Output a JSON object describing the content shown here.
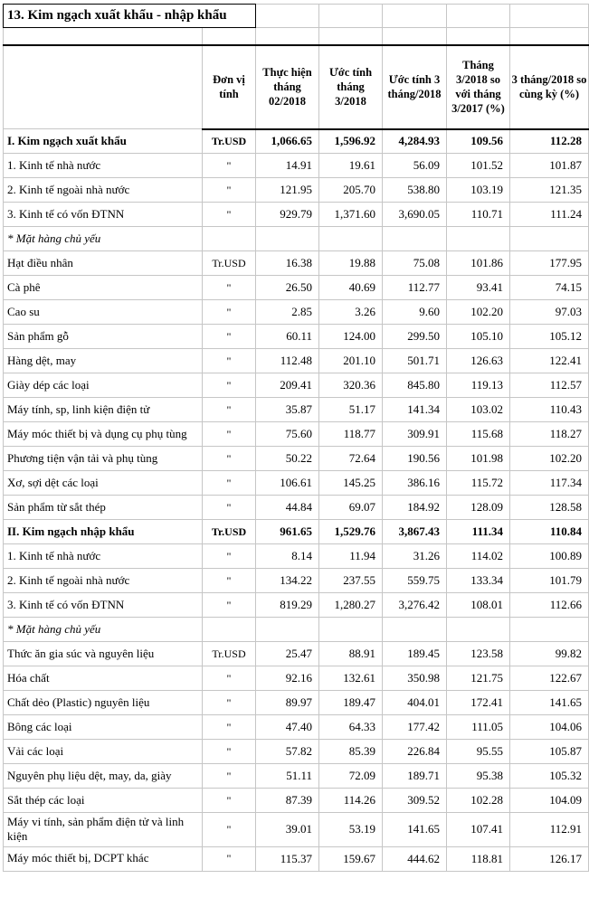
{
  "title": "13. Kim ngạch xuất khẩu - nhập khẩu",
  "colors": {
    "background": "#ffffff",
    "grid_line": "#c6c6c6",
    "accent_border": "#000000",
    "text": "#000000"
  },
  "table": {
    "columns": [
      "",
      "Đơn vị tính",
      "Thực hiện tháng 02/2018",
      "Ước tính tháng 3/2018",
      "Ước tính 3 tháng/2018",
      "Tháng 3/2018 so với tháng 3/2017 (%)",
      "3 tháng/2018 so cùng kỳ (%)"
    ],
    "rows": [
      {
        "label": "I. Kim ngạch xuất khẩu",
        "unit": "Tr.USD",
        "values": [
          "1,066.65",
          "1,596.92",
          "4,284.93",
          "109.56",
          "112.28"
        ],
        "style": "bold"
      },
      {
        "label": "1. Kinh tế nhà nước",
        "unit": "\"",
        "values": [
          "14.91",
          "19.61",
          "56.09",
          "101.52",
          "101.87"
        ],
        "style": "normal"
      },
      {
        "label": "2. Kinh tế ngoài nhà nước",
        "unit": "\"",
        "values": [
          "121.95",
          "205.70",
          "538.80",
          "103.19",
          "121.35"
        ],
        "style": "normal"
      },
      {
        "label": "3. Kinh tế có vốn ĐTNN",
        "unit": "\"",
        "values": [
          "929.79",
          "1,371.60",
          "3,690.05",
          "110.71",
          "111.24"
        ],
        "style": "normal"
      },
      {
        "label": "* Mặt hàng chủ yếu",
        "unit": "",
        "values": [
          "",
          "",
          "",
          "",
          ""
        ],
        "style": "italic"
      },
      {
        "label": "Hạt điều nhân",
        "unit": "Tr.USD",
        "values": [
          "16.38",
          "19.88",
          "75.08",
          "101.86",
          "177.95"
        ],
        "style": "normal"
      },
      {
        "label": "Cà phê",
        "unit": "\"",
        "values": [
          "26.50",
          "40.69",
          "112.77",
          "93.41",
          "74.15"
        ],
        "style": "normal"
      },
      {
        "label": "Cao su",
        "unit": "\"",
        "values": [
          "2.85",
          "3.26",
          "9.60",
          "102.20",
          "97.03"
        ],
        "style": "normal"
      },
      {
        "label": "Sản phẩm gỗ",
        "unit": "\"",
        "values": [
          "60.11",
          "124.00",
          "299.50",
          "105.10",
          "105.12"
        ],
        "style": "normal"
      },
      {
        "label": "Hàng dệt, may",
        "unit": "\"",
        "values": [
          "112.48",
          "201.10",
          "501.71",
          "126.63",
          "122.41"
        ],
        "style": "normal"
      },
      {
        "label": "Giày dép các loại",
        "unit": "\"",
        "values": [
          "209.41",
          "320.36",
          "845.80",
          "119.13",
          "112.57"
        ],
        "style": "normal"
      },
      {
        "label": "Máy tính, sp, linh kiện điện tử",
        "unit": "\"",
        "values": [
          "35.87",
          "51.17",
          "141.34",
          "103.02",
          "110.43"
        ],
        "style": "normal"
      },
      {
        "label": "Máy móc thiết bị và dụng cụ phụ tùng",
        "unit": "\"",
        "values": [
          "75.60",
          "118.77",
          "309.91",
          "115.68",
          "118.27"
        ],
        "style": "normal"
      },
      {
        "label": "Phương tiện vận tải và phụ tùng",
        "unit": "\"",
        "values": [
          "50.22",
          "72.64",
          "190.56",
          "101.98",
          "102.20"
        ],
        "style": "normal"
      },
      {
        "label": "Xơ, sợi dệt các loại",
        "unit": "\"",
        "values": [
          "106.61",
          "145.25",
          "386.16",
          "115.72",
          "117.34"
        ],
        "style": "normal"
      },
      {
        "label": "Sản phẩm từ sắt thép",
        "unit": "\"",
        "values": [
          "44.84",
          "69.07",
          "184.92",
          "128.09",
          "128.58"
        ],
        "style": "normal"
      },
      {
        "label": "II. Kim ngạch nhập khẩu",
        "unit": "Tr.USD",
        "values": [
          "961.65",
          "1,529.76",
          "3,867.43",
          "111.34",
          "110.84"
        ],
        "style": "bold"
      },
      {
        "label": "1. Kinh tế nhà nước",
        "unit": "\"",
        "values": [
          "8.14",
          "11.94",
          "31.26",
          "114.02",
          "100.89"
        ],
        "style": "normal"
      },
      {
        "label": "2. Kinh tế ngoài nhà nước",
        "unit": "\"",
        "values": [
          "134.22",
          "237.55",
          "559.75",
          "133.34",
          "101.79"
        ],
        "style": "normal"
      },
      {
        "label": "3. Kinh tế có vốn ĐTNN",
        "unit": "\"",
        "values": [
          "819.29",
          "1,280.27",
          "3,276.42",
          "108.01",
          "112.66"
        ],
        "style": "normal"
      },
      {
        "label": "* Mặt hàng chủ yếu",
        "unit": "",
        "values": [
          "",
          "",
          "",
          "",
          ""
        ],
        "style": "italic"
      },
      {
        "label": "Thức ăn gia súc và nguyên liệu",
        "unit": "Tr.USD",
        "values": [
          "25.47",
          "88.91",
          "189.45",
          "123.58",
          "99.82"
        ],
        "style": "normal"
      },
      {
        "label": "Hóa chất",
        "unit": "\"",
        "values": [
          "92.16",
          "132.61",
          "350.98",
          "121.75",
          "122.67"
        ],
        "style": "normal"
      },
      {
        "label": "Chất dẻo (Plastic) nguyên liệu",
        "unit": "\"",
        "values": [
          "89.97",
          "189.47",
          "404.01",
          "172.41",
          "141.65"
        ],
        "style": "normal"
      },
      {
        "label": "Bông các loại",
        "unit": "\"",
        "values": [
          "47.40",
          "64.33",
          "177.42",
          "111.05",
          "104.06"
        ],
        "style": "normal"
      },
      {
        "label": "Vải các loại",
        "unit": "\"",
        "values": [
          "57.82",
          "85.39",
          "226.84",
          "95.55",
          "105.87"
        ],
        "style": "normal"
      },
      {
        "label": "Nguyên phụ liệu dệt, may, da, giày",
        "unit": "\"",
        "values": [
          "51.11",
          "72.09",
          "189.71",
          "95.38",
          "105.32"
        ],
        "style": "normal"
      },
      {
        "label": "Sắt thép các loại",
        "unit": "\"",
        "values": [
          "87.39",
          "114.26",
          "309.52",
          "102.28",
          "104.09"
        ],
        "style": "normal"
      },
      {
        "label": "Máy vi tính, sản phẩm điện tử và linh kiện",
        "unit": "\"",
        "values": [
          "39.01",
          "53.19",
          "141.65",
          "107.41",
          "112.91"
        ],
        "style": "normal"
      },
      {
        "label": "Máy móc thiết bị, DCPT khác",
        "unit": "\"",
        "values": [
          "115.37",
          "159.67",
          "444.62",
          "118.81",
          "126.17"
        ],
        "style": "normal"
      }
    ]
  }
}
